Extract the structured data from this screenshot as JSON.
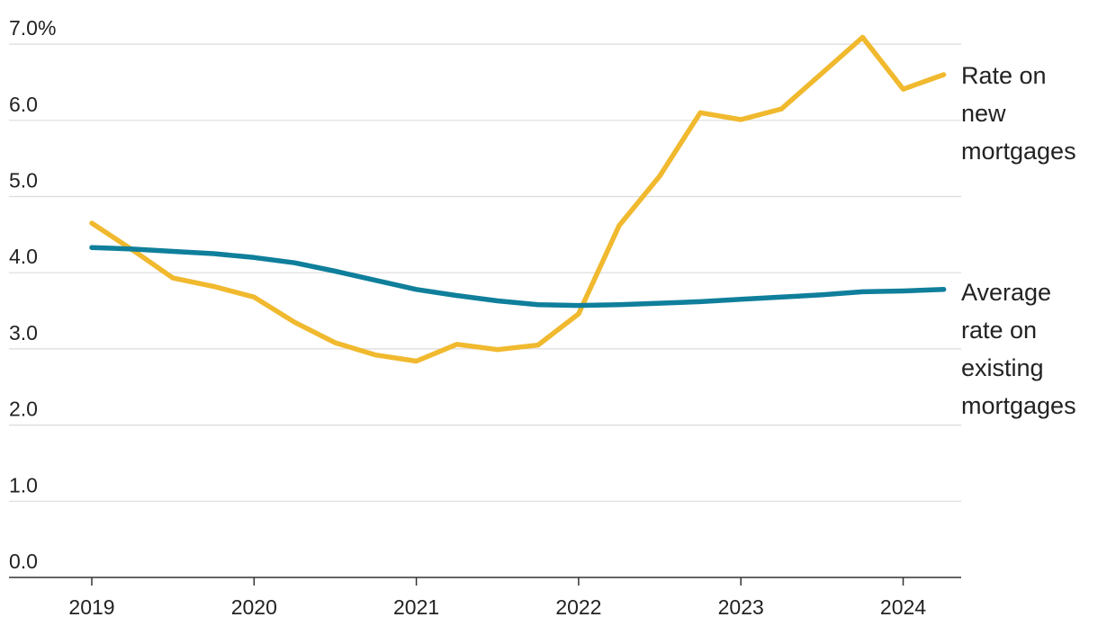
{
  "chart_data": {
    "type": "line",
    "title": "",
    "xlabel": "",
    "ylabel": "",
    "x_ticks": [
      "2019",
      "2020",
      "2021",
      "2022",
      "2023",
      "2024"
    ],
    "y_ticks": [
      "7.0%",
      "6.0",
      "5.0",
      "4.0",
      "3.0",
      "2.0",
      "1.0",
      "0.0"
    ],
    "ylim": [
      0,
      7
    ],
    "xlim": [
      2019,
      2024.35
    ],
    "grid": true,
    "legend": "direct labels at right end of lines",
    "series": [
      {
        "name": "Rate on new mortgages",
        "label_lines": [
          "Rate on",
          "new",
          "mortgages"
        ],
        "color": "#f0b92e",
        "x": [
          2019.0,
          2019.25,
          2019.5,
          2019.75,
          2020.0,
          2020.25,
          2020.5,
          2020.75,
          2021.0,
          2021.25,
          2021.5,
          2021.75,
          2022.0,
          2022.25,
          2022.5,
          2022.75,
          2023.0,
          2023.25,
          2023.5,
          2023.75,
          2024.0,
          2024.25
        ],
        "y": [
          4.65,
          4.3,
          3.93,
          3.82,
          3.68,
          3.35,
          3.08,
          2.92,
          2.84,
          3.06,
          2.99,
          3.05,
          3.46,
          4.62,
          5.27,
          6.1,
          6.01,
          6.15,
          6.62,
          7.09,
          6.41,
          6.6
        ]
      },
      {
        "name": "Average rate on existing mortgages",
        "label_lines": [
          "Average",
          "rate on",
          "existing",
          "mortgages"
        ],
        "color": "#0f7f9b",
        "x": [
          2019.0,
          2019.25,
          2019.5,
          2019.75,
          2020.0,
          2020.25,
          2020.5,
          2020.75,
          2021.0,
          2021.25,
          2021.5,
          2021.75,
          2022.0,
          2022.25,
          2022.5,
          2022.75,
          2023.0,
          2023.25,
          2023.5,
          2023.75,
          2024.0,
          2024.25
        ],
        "y": [
          4.33,
          4.31,
          4.28,
          4.25,
          4.2,
          4.13,
          4.02,
          3.9,
          3.78,
          3.7,
          3.63,
          3.58,
          3.57,
          3.58,
          3.6,
          3.62,
          3.65,
          3.68,
          3.71,
          3.75,
          3.76,
          3.78
        ]
      }
    ]
  }
}
